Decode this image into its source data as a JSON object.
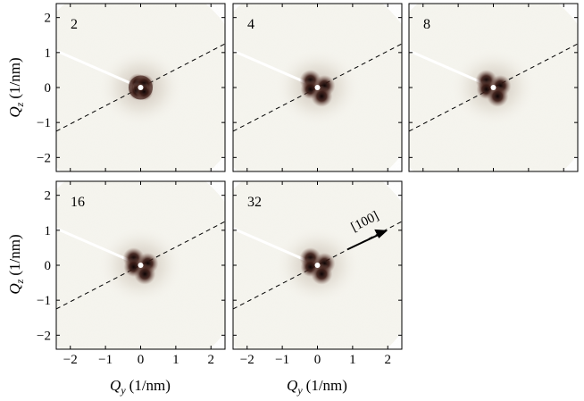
{
  "figure": {
    "xlabel": "Q",
    "xlabel_sub": "y",
    "xlabel_unit": "(1/nm)",
    "ylabel": "Q",
    "ylabel_sub": "z",
    "ylabel_unit": "(1/nm)",
    "xticks": [
      "−2",
      "−1",
      "0",
      "1",
      "2"
    ],
    "yticks": [
      "2",
      "1",
      "0",
      "−1",
      "−2"
    ],
    "direction_label": "[100]",
    "panels": [
      {
        "label": "2",
        "col": 0,
        "row": 0
      },
      {
        "label": "4",
        "col": 1,
        "row": 0
      },
      {
        "label": "8",
        "col": 2,
        "row": 0
      },
      {
        "label": "16",
        "col": 0,
        "row": 1
      },
      {
        "label": "32",
        "col": 1,
        "row": 1
      }
    ]
  },
  "colors": {
    "background": "#f6f5ef",
    "spot": "#1a0a08",
    "halo": "#7a5a50"
  }
}
